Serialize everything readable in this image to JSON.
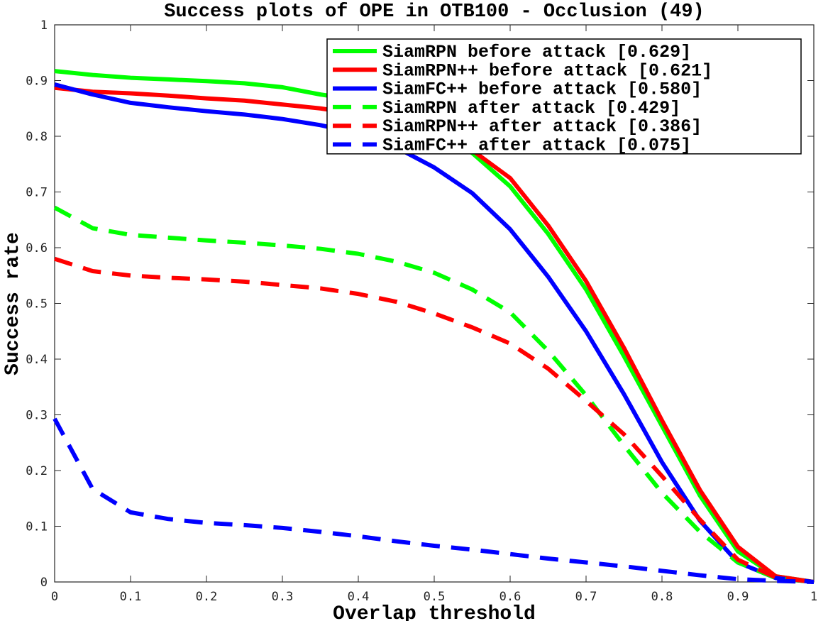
{
  "chart_data": {
    "type": "line",
    "title": "Success plots of OPE in OTB100 - Occlusion (49)",
    "xlabel": "Overlap threshold",
    "ylabel": "Success rate",
    "xlim": [
      0,
      1
    ],
    "ylim": [
      0,
      1
    ],
    "xticks": [
      "0",
      "0.1",
      "0.2",
      "0.3",
      "0.4",
      "0.5",
      "0.6",
      "0.7",
      "0.8",
      "0.9",
      "1"
    ],
    "yticks": [
      "0",
      "0.1",
      "0.2",
      "0.3",
      "0.4",
      "0.5",
      "0.6",
      "0.7",
      "0.8",
      "0.9",
      "1"
    ],
    "grid": false,
    "legend_position": "top-right",
    "x": [
      0,
      0.05,
      0.1,
      0.15,
      0.2,
      0.25,
      0.3,
      0.35,
      0.4,
      0.45,
      0.5,
      0.55,
      0.6,
      0.65,
      0.7,
      0.75,
      0.8,
      0.85,
      0.9,
      0.95,
      1.0
    ],
    "series": [
      {
        "name": "SiamRPN before attack [0.629]",
        "color": "#00ff00",
        "style": "solid",
        "values": [
          0.917,
          0.91,
          0.905,
          0.902,
          0.899,
          0.895,
          0.888,
          0.875,
          0.865,
          0.84,
          0.81,
          0.77,
          0.71,
          0.625,
          0.525,
          0.405,
          0.28,
          0.155,
          0.055,
          0.01,
          0.0
        ]
      },
      {
        "name": "SiamRPN++ before attack [0.621]",
        "color": "#ff0000",
        "style": "solid",
        "values": [
          0.887,
          0.88,
          0.877,
          0.873,
          0.868,
          0.864,
          0.857,
          0.85,
          0.84,
          0.82,
          0.8,
          0.775,
          0.725,
          0.64,
          0.54,
          0.42,
          0.29,
          0.165,
          0.063,
          0.01,
          0.0
        ]
      },
      {
        "name": "SiamFC++ before attack [0.580]",
        "color": "#0000ff",
        "style": "solid",
        "values": [
          0.893,
          0.875,
          0.86,
          0.852,
          0.845,
          0.839,
          0.831,
          0.82,
          0.805,
          0.78,
          0.744,
          0.698,
          0.633,
          0.548,
          0.45,
          0.337,
          0.215,
          0.11,
          0.035,
          0.007,
          0.0
        ]
      },
      {
        "name": "SiamRPN after attack [0.429]",
        "color": "#00ff00",
        "style": "dashed",
        "values": [
          0.672,
          0.635,
          0.623,
          0.618,
          0.613,
          0.609,
          0.604,
          0.598,
          0.589,
          0.575,
          0.555,
          0.525,
          0.484,
          0.415,
          0.335,
          0.245,
          0.16,
          0.09,
          0.035,
          0.007,
          0.0
        ]
      },
      {
        "name": "SiamRPN++ after attack [0.386]",
        "color": "#ff0000",
        "style": "dashed",
        "values": [
          0.58,
          0.558,
          0.55,
          0.546,
          0.543,
          0.539,
          0.533,
          0.527,
          0.517,
          0.503,
          0.482,
          0.457,
          0.428,
          0.383,
          0.325,
          0.265,
          0.19,
          0.112,
          0.04,
          0.008,
          0.0
        ]
      },
      {
        "name": "SiamFC++ after attack [0.075]",
        "color": "#0000ff",
        "style": "dashed",
        "values": [
          0.293,
          0.167,
          0.125,
          0.113,
          0.106,
          0.102,
          0.097,
          0.09,
          0.082,
          0.073,
          0.065,
          0.058,
          0.05,
          0.042,
          0.035,
          0.028,
          0.02,
          0.012,
          0.005,
          0.002,
          0.0
        ]
      }
    ]
  }
}
